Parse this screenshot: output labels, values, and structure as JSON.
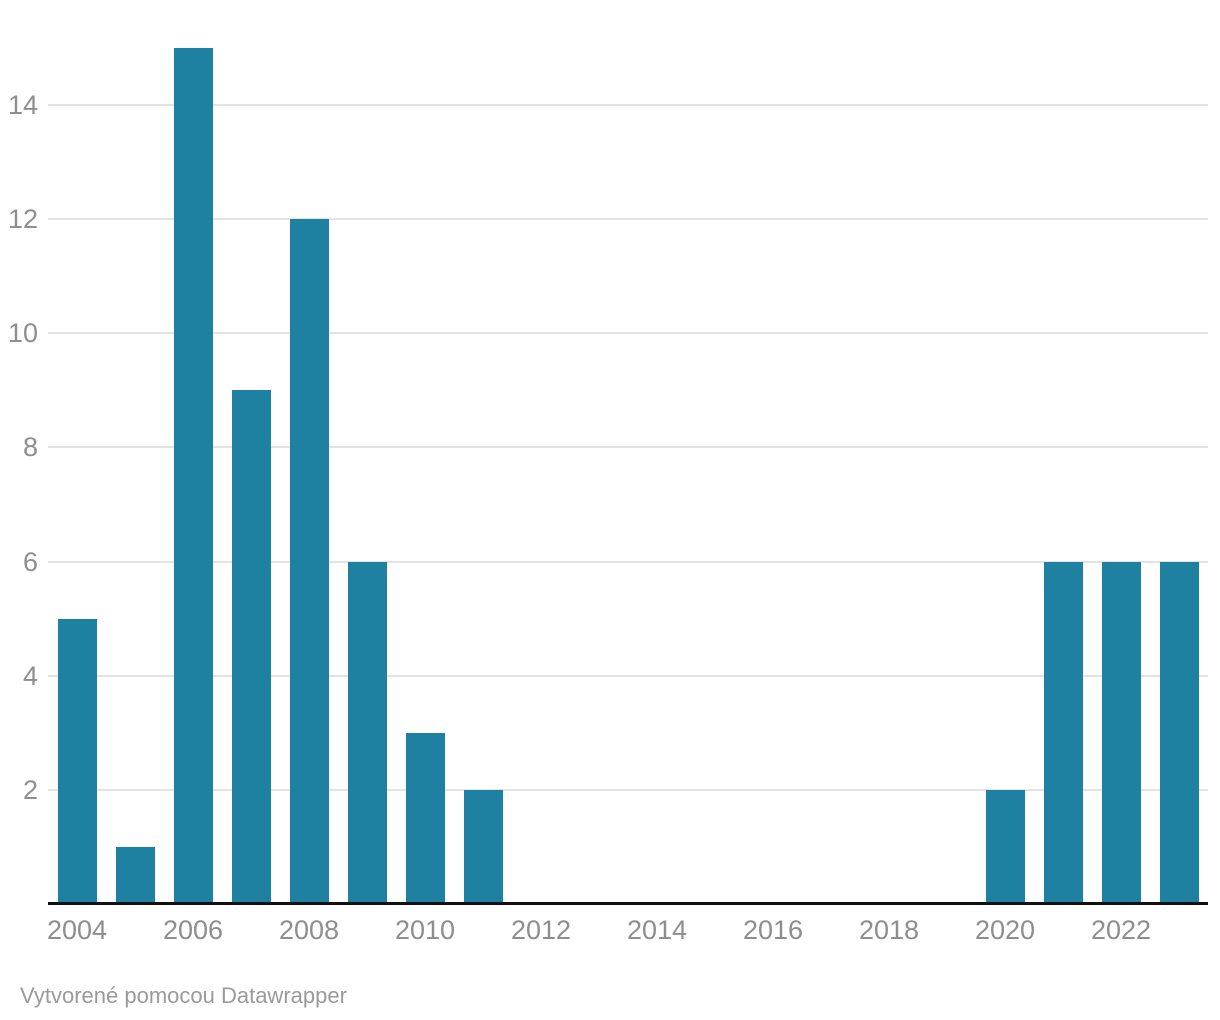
{
  "chart_data": {
    "type": "bar",
    "categories": [
      "2004",
      "2005",
      "2006",
      "2007",
      "2008",
      "2009",
      "2010",
      "2011",
      "2012",
      "2013",
      "2014",
      "2015",
      "2016",
      "2017",
      "2018",
      "2019",
      "2020",
      "2021",
      "2022",
      "2023"
    ],
    "values": [
      5,
      1,
      15,
      9,
      12,
      6,
      3,
      2,
      0,
      0,
      0,
      0,
      0,
      0,
      0,
      0,
      2,
      6,
      6,
      6
    ],
    "xlabel": "",
    "ylabel": "",
    "ylim": [
      0,
      15
    ],
    "yticks": [
      2,
      4,
      6,
      8,
      10,
      12,
      14
    ],
    "xticks": [
      "2004",
      "2006",
      "2008",
      "2010",
      "2012",
      "2014",
      "2016",
      "2018",
      "2020",
      "2022"
    ],
    "grid": true,
    "legend": false
  },
  "colors": {
    "bar": "#1e81a2",
    "grid": "#e3e3e3",
    "axis_line": "#111111",
    "tick_label": "#8e8e8e",
    "footer_text": "#9a9a9a",
    "background": "#ffffff"
  },
  "footer": {
    "text": "Vytvorené pomocou Datawrapper"
  }
}
